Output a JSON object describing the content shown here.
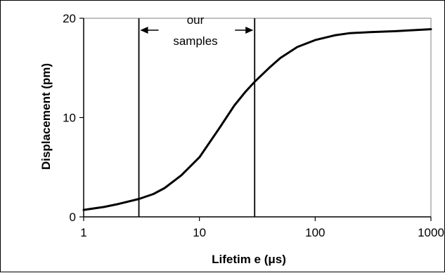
{
  "chart_data": {
    "type": "line",
    "xlabel": "Lifetim e (μs)",
    "ylabel": "Displacement (pm)",
    "x_scale": "log",
    "xlim": [
      1,
      1000
    ],
    "ylim": [
      0,
      20
    ],
    "x_ticks": [
      1,
      10,
      100,
      1000
    ],
    "x_tick_labels": [
      "1",
      "10",
      "100",
      "1000"
    ],
    "y_ticks": [
      0,
      10,
      20
    ],
    "y_tick_labels": [
      "0",
      "10",
      "20"
    ],
    "grid": false,
    "legend": "none",
    "line_color": "#000000",
    "series": [
      {
        "x": [
          1,
          1.5,
          2,
          3,
          4,
          5,
          7,
          10,
          15,
          20,
          25,
          30,
          40,
          50,
          70,
          100,
          150,
          200,
          300,
          500,
          700,
          1000
        ],
        "y": [
          0.7,
          1.0,
          1.3,
          1.8,
          2.3,
          2.9,
          4.2,
          6.0,
          9.0,
          11.2,
          12.6,
          13.6,
          15.0,
          16.0,
          17.1,
          17.8,
          18.3,
          18.5,
          18.6,
          18.7,
          18.8,
          18.9
        ]
      }
    ],
    "annotations": {
      "vertical_lines_x": [
        3,
        30
      ],
      "label_line1": "our",
      "label_line2": "samples"
    }
  }
}
